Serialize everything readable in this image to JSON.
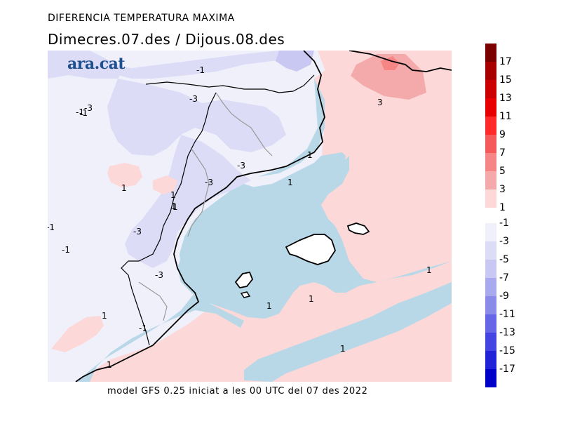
{
  "header": {
    "title": "DIFERENCIA TEMPERATURA MAXIMA",
    "subtitle": "Dimecres.07.des / Dijous.08.des"
  },
  "logo": {
    "text": "ara.cat",
    "color": "#1d4f8c"
  },
  "footer": {
    "text": "model GFS 0.25 iniciat a les 00 UTC del 07 des 2022"
  },
  "colorbar": {
    "warm": [
      {
        "label": "17",
        "color": "#7a0000"
      },
      {
        "label": "15",
        "color": "#a80000"
      },
      {
        "label": "13",
        "color": "#cc0000"
      },
      {
        "label": "11",
        "color": "#e80000"
      },
      {
        "label": "9",
        "color": "#ff2a2a"
      },
      {
        "label": "7",
        "color": "#f45a5a"
      },
      {
        "label": "5",
        "color": "#f68585"
      },
      {
        "label": "3",
        "color": "#f4aaaa"
      },
      {
        "label": "1",
        "color": "#fcd8d8"
      }
    ],
    "cold": [
      {
        "label": "-1",
        "color": "#f0f0fb"
      },
      {
        "label": "-3",
        "color": "#dcdcf7"
      },
      {
        "label": "-5",
        "color": "#c8c8f2"
      },
      {
        "label": "-7",
        "color": "#a9a9ee"
      },
      {
        "label": "-9",
        "color": "#8a8ae8"
      },
      {
        "label": "-11",
        "color": "#6666e6"
      },
      {
        "label": "-13",
        "color": "#4444e2"
      },
      {
        "label": "-15",
        "color": "#2222d8"
      },
      {
        "label": "-17",
        "color": "#0000c8"
      }
    ]
  },
  "map": {
    "sea_color": "#b8d8e8",
    "contour_labels": [
      "-1",
      "-1",
      "-3",
      "-1",
      "-3",
      "-3",
      "1",
      "-3",
      "1",
      "1",
      "1",
      "-1",
      "-3",
      "-1",
      "1",
      "3",
      "-3",
      "1",
      "1",
      "1",
      "1",
      "1",
      "1",
      "-1",
      "1"
    ]
  }
}
